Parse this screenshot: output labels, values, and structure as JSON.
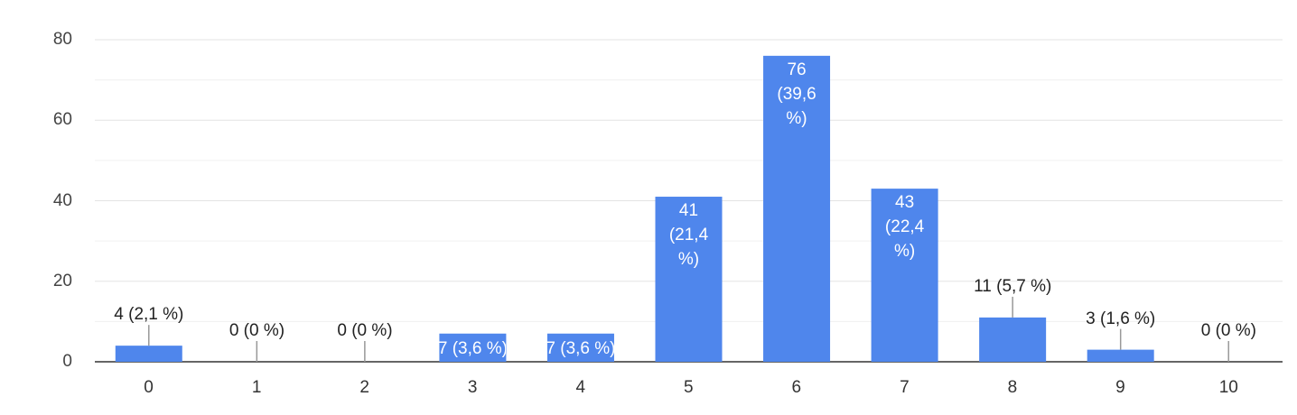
{
  "chart_data": {
    "type": "bar",
    "categories": [
      "0",
      "1",
      "2",
      "3",
      "4",
      "5",
      "6",
      "7",
      "8",
      "9",
      "10"
    ],
    "values": [
      4,
      0,
      0,
      7,
      7,
      41,
      76,
      43,
      11,
      3,
      0
    ],
    "value_labels": [
      "4 (2,1 %)",
      "0 (0 %)",
      "0 (0 %)",
      "7 (3,6 %)",
      "7 (3,6 %)",
      "41 (21,4 %)",
      "76 (39,6 %)",
      "43 (22,4 %)",
      "11 (5,7 %)",
      "3 (1,6 %)",
      "0 (0 %)"
    ],
    "color": "#4f86ec",
    "ylim": [
      0,
      80
    ],
    "yticks": [
      0,
      20,
      40,
      60,
      80
    ],
    "grid": true
  }
}
